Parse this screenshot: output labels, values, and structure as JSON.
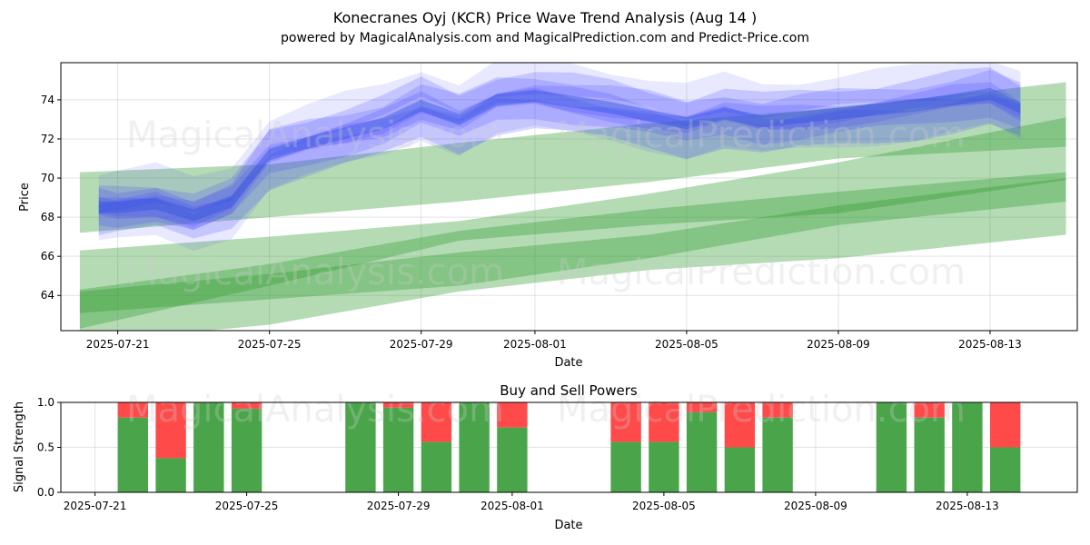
{
  "chart_data": [
    {
      "type": "area",
      "title": "Konecranes Oyj (KCR) Price Wave Trend Analysis (Aug 14 )",
      "subtitle": "powered by MagicalAnalysis.com and MagicalPrediction.com and Predict-Price.com",
      "xlabel": "Date",
      "ylabel": "Price",
      "x_tick_labels": [
        "2025-07-21",
        "2025-07-25",
        "2025-07-29",
        "2025-08-01",
        "2025-08-05",
        "2025-08-09",
        "2025-08-13"
      ],
      "x_tick_days": [
        1,
        5,
        9,
        12,
        16,
        20,
        24
      ],
      "x_range_days": [
        -0.5,
        26.3
      ],
      "y_ticks": [
        64,
        66,
        68,
        70,
        72,
        74
      ],
      "ylim": [
        62.2,
        75.9
      ],
      "grid": true,
      "watermarks": [
        "MagicalAnalysis.com",
        "MagicalPrediction.com"
      ],
      "green_bands": [
        {
          "x": [
            0,
            5,
            10,
            15,
            20,
            26
          ],
          "low": [
            67.2,
            68.0,
            68.8,
            69.8,
            71.0,
            71.6
          ],
          "high": [
            70.3,
            70.7,
            71.8,
            72.8,
            73.6,
            74.9
          ]
        },
        {
          "x": [
            0,
            5,
            10,
            15,
            20,
            26
          ],
          "low": [
            62.3,
            64.5,
            66.8,
            67.6,
            68.2,
            69.9
          ],
          "high": [
            66.3,
            67.0,
            67.8,
            69.2,
            70.8,
            73.1
          ]
        },
        {
          "x": [
            0,
            5,
            10,
            15,
            20,
            26
          ],
          "low": [
            63.1,
            63.8,
            64.5,
            65.9,
            67.6,
            68.8
          ],
          "high": [
            64.3,
            65.6,
            67.3,
            68.4,
            69.3,
            70.3
          ]
        },
        {
          "x": [
            0,
            5,
            10,
            15,
            20,
            26
          ],
          "low": [
            61.6,
            62.5,
            64.2,
            65.3,
            65.9,
            67.1
          ],
          "high": [
            64.2,
            65.1,
            66.2,
            67.1,
            68.6,
            70.0
          ]
        }
      ],
      "blue_path": {
        "x": [
          0.5,
          1,
          2,
          3,
          4,
          5,
          6,
          7,
          8,
          9,
          10,
          11,
          12,
          13,
          14,
          15,
          16,
          17,
          18,
          19,
          20,
          21,
          22,
          23,
          24,
          24.8
        ],
        "y": [
          68.5,
          68.5,
          68.7,
          68.1,
          68.8,
          71.2,
          71.8,
          72.3,
          72.8,
          73.7,
          73.0,
          74.0,
          74.2,
          73.9,
          73.6,
          73.2,
          72.8,
          73.3,
          72.9,
          73.1,
          73.3,
          73.5,
          73.7,
          74.0,
          74.3,
          73.6
        ],
        "layers": [
          {
            "offset": 0.0,
            "half_width": 0.55
          },
          {
            "offset": 0.6,
            "half_width": 0.7
          },
          {
            "offset": -0.7,
            "half_width": 0.6
          },
          {
            "offset": 1.3,
            "half_width": 0.5
          },
          {
            "offset": -1.4,
            "half_width": 0.8
          },
          {
            "offset": 0.2,
            "half_width": 1.8
          }
        ]
      }
    },
    {
      "type": "bar",
      "title": "Buy and Sell Powers",
      "xlabel": "Date",
      "ylabel": "Signal Strength",
      "x_tick_labels": [
        "2025-07-21",
        "2025-07-25",
        "2025-07-29",
        "2025-08-01",
        "2025-08-05",
        "2025-08-09",
        "2025-08-13"
      ],
      "x_tick_days": [
        1,
        5,
        9,
        12,
        16,
        20,
        24
      ],
      "x_range_days": [
        -0.5,
        26.3
      ],
      "y_tick_labels": [
        "0.0",
        "0.5",
        "1.0"
      ],
      "y_ticks": [
        0,
        0.5,
        1
      ],
      "ylim": [
        0,
        1
      ],
      "days": [
        2,
        3,
        4,
        5,
        8,
        9,
        10,
        11,
        12,
        15,
        16,
        17,
        18,
        19,
        22,
        23,
        24,
        25
      ],
      "buy": [
        0.83,
        0.38,
        1.0,
        0.93,
        1.0,
        0.94,
        0.56,
        1.0,
        0.72,
        0.56,
        0.56,
        0.89,
        0.5,
        0.83,
        1.0,
        0.83,
        1.0,
        0.5
      ],
      "colors": {
        "buy": "#4aa54a",
        "sell": "#ff4a4a"
      }
    }
  ]
}
